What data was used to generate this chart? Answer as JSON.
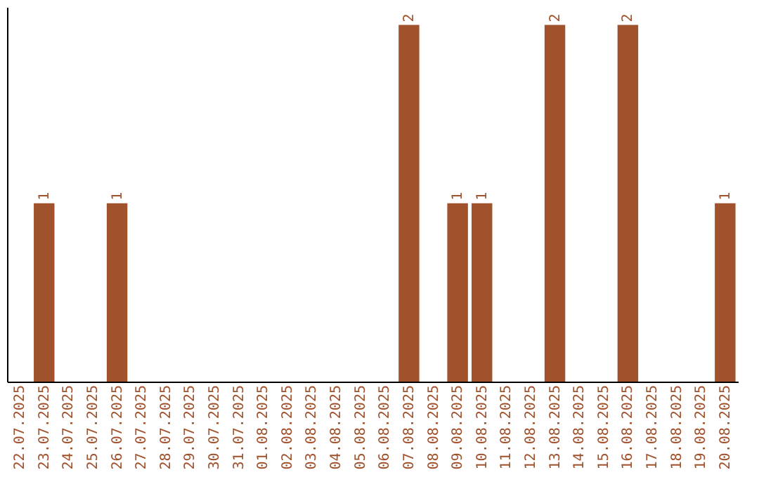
{
  "chart_data": {
    "type": "bar",
    "categories": [
      "22.07.2025",
      "23.07.2025",
      "24.07.2025",
      "25.07.2025",
      "26.07.2025",
      "27.07.2025",
      "28.07.2025",
      "29.07.2025",
      "30.07.2025",
      "31.07.2025",
      "01.08.2025",
      "02.08.2025",
      "03.08.2025",
      "04.08.2025",
      "05.08.2025",
      "06.08.2025",
      "07.08.2025",
      "08.08.2025",
      "09.08.2025",
      "10.08.2025",
      "11.08.2025",
      "12.08.2025",
      "13.08.2025",
      "14.08.2025",
      "15.08.2025",
      "16.08.2025",
      "17.08.2025",
      "18.08.2025",
      "19.08.2025",
      "20.08.2025"
    ],
    "values": [
      0,
      1,
      0,
      0,
      1,
      0,
      0,
      0,
      0,
      0,
      0,
      0,
      0,
      0,
      0,
      0,
      2,
      0,
      1,
      1,
      0,
      0,
      2,
      0,
      0,
      2,
      0,
      0,
      0,
      1
    ],
    "value_labels": [
      null,
      "1",
      null,
      null,
      "1",
      null,
      null,
      null,
      null,
      null,
      null,
      null,
      null,
      null,
      null,
      null,
      "2",
      null,
      "1",
      "1",
      null,
      null,
      "2",
      null,
      null,
      "2",
      null,
      null,
      null,
      "1"
    ],
    "color": "#a0522d",
    "grid": false
  }
}
